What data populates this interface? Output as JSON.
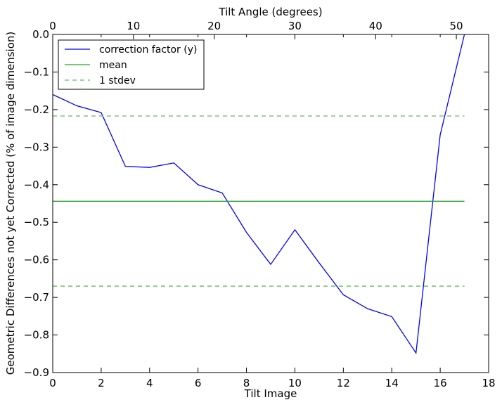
{
  "chart_data": {
    "type": "line",
    "xlabel": "Tilt Image",
    "ylabel": "Geometric Differences not yet Corrected (% of image dimension)",
    "x2label": "Tilt Angle (degrees)",
    "xlim": [
      0,
      18
    ],
    "ylim": [
      -0.9,
      0.0
    ],
    "x2lim": [
      0,
      54
    ],
    "xticks": [
      0,
      2,
      4,
      6,
      8,
      10,
      12,
      14,
      16,
      18
    ],
    "yticks": [
      0.0,
      -0.1,
      -0.2,
      -0.3,
      -0.4,
      -0.5,
      -0.6,
      -0.7,
      -0.8,
      -0.9
    ],
    "x2ticks": [
      0,
      10,
      20,
      30,
      40,
      50
    ],
    "xtick_labels": [
      "0",
      "2",
      "4",
      "6",
      "8",
      "10",
      "12",
      "14",
      "16",
      "18"
    ],
    "ytick_labels": [
      "0.0",
      "−0.1",
      "−0.2",
      "−0.3",
      "−0.4",
      "−0.5",
      "−0.6",
      "−0.7",
      "−0.8",
      "−0.9"
    ],
    "x2tick_labels": [
      "0",
      "10",
      "20",
      "30",
      "40",
      "50"
    ],
    "grid": false,
    "legend_position": "top-left",
    "series": [
      {
        "name": "correction factor (y)",
        "style": "solid",
        "color": "#0000ff",
        "x": [
          0,
          1,
          2,
          3,
          4,
          5,
          6,
          7,
          8,
          9,
          10,
          11,
          12,
          13,
          14,
          15,
          16,
          17
        ],
        "y": [
          -0.16,
          -0.19,
          -0.208,
          -0.351,
          -0.354,
          -0.342,
          -0.4,
          -0.422,
          -0.527,
          -0.612,
          -0.52,
          -0.608,
          -0.693,
          -0.73,
          -0.751,
          -0.848,
          -0.267,
          0.0
        ]
      },
      {
        "name": "mean",
        "style": "solid",
        "color": "#2ca02c",
        "x": [
          0,
          17
        ],
        "y": [
          -0.444,
          -0.444
        ]
      },
      {
        "name": "1 stdev",
        "style": "dashed",
        "color": "#5cbf5c",
        "x": [
          0,
          17
        ],
        "y": [
          -0.217,
          -0.217
        ]
      },
      {
        "name": "",
        "style": "dashed",
        "color": "#5cbf5c",
        "x": [
          0,
          17
        ],
        "y": [
          -0.67,
          -0.67
        ]
      }
    ]
  }
}
